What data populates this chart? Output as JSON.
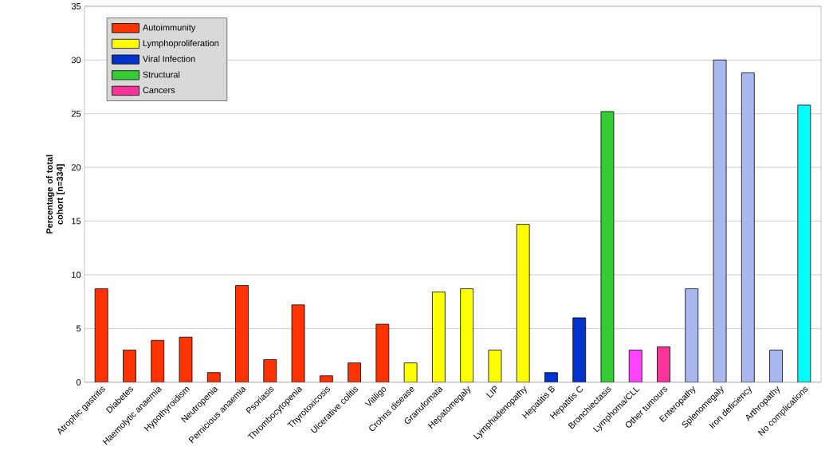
{
  "chart_data": {
    "type": "bar",
    "ylabel": "Percentage of total cohort [n=334]",
    "categories": [
      "Atrophic gastritis",
      "Diabetes",
      "Haemolytic anaemia",
      "Hypothyroidism",
      "Neutropenia",
      "Pernicious anaemia",
      "Psoriasis",
      "Thrombocytopenia",
      "Thyrotoxicosis",
      "Ulcerative colitis",
      "Vitiligo",
      "Crohns disease",
      "Granulomata",
      "Hepatomegaly",
      "LIP",
      "Lymphadenopathy",
      "Hepatitis B",
      "Hepatitis C",
      "Bronchiectasis",
      "Lymphoma/CLL",
      "Other tumours",
      "Enteropathy",
      "Splenomegaly",
      "Iron deficiency",
      "Arthropathy",
      "No complications"
    ],
    "series": [
      {
        "name": "Autoimmunity",
        "color": "#ff3300",
        "values": [
          8.7,
          3.0,
          3.9,
          4.2,
          0.9,
          9.0,
          2.1,
          7.2,
          0.6,
          1.8,
          5.4,
          null,
          null,
          null,
          null,
          null,
          null,
          null,
          null,
          null,
          null,
          null,
          null,
          null,
          null,
          null
        ]
      },
      {
        "name": "Lymphoproliferation",
        "color": "#ffff00",
        "values": [
          null,
          null,
          null,
          null,
          null,
          null,
          null,
          null,
          null,
          null,
          null,
          1.8,
          8.4,
          8.7,
          3.0,
          14.7,
          null,
          null,
          null,
          null,
          null,
          null,
          null,
          null,
          null,
          null
        ]
      },
      {
        "name": "Viral Infection",
        "color": "#0033cc",
        "values": [
          null,
          null,
          null,
          null,
          null,
          null,
          null,
          null,
          null,
          null,
          null,
          null,
          null,
          null,
          null,
          null,
          0.9,
          6.0,
          null,
          null,
          null,
          null,
          null,
          null,
          null,
          null
        ]
      },
      {
        "name": "Structural",
        "color": "#33cc33",
        "values": [
          null,
          null,
          null,
          null,
          null,
          null,
          null,
          null,
          null,
          null,
          null,
          null,
          null,
          null,
          null,
          null,
          null,
          null,
          25.2,
          null,
          null,
          null,
          null,
          null,
          null,
          null
        ]
      },
      {
        "name": "Cancers",
        "color": "#ff3399",
        "colors": [
          null,
          null,
          null,
          null,
          null,
          null,
          null,
          null,
          null,
          null,
          null,
          null,
          null,
          null,
          null,
          null,
          null,
          null,
          null,
          "#ff44ff",
          "#ff3399",
          null,
          null,
          null,
          null,
          null
        ],
        "values": [
          null,
          null,
          null,
          null,
          null,
          null,
          null,
          null,
          null,
          null,
          null,
          null,
          null,
          null,
          null,
          null,
          null,
          null,
          null,
          3.0,
          3.3,
          null,
          null,
          null,
          null,
          null
        ]
      },
      {
        "color": "#aab8f0",
        "values": [
          null,
          null,
          null,
          null,
          null,
          null,
          null,
          null,
          null,
          null,
          null,
          null,
          null,
          null,
          null,
          null,
          null,
          null,
          null,
          null,
          null,
          8.7,
          30.0,
          28.8,
          3.0,
          null
        ]
      },
      {
        "color": "#00ffff",
        "values": [
          null,
          null,
          null,
          null,
          null,
          null,
          null,
          null,
          null,
          null,
          null,
          null,
          null,
          null,
          null,
          null,
          null,
          null,
          null,
          null,
          null,
          null,
          null,
          null,
          null,
          25.8
        ]
      }
    ],
    "ylim": [
      0,
      35
    ],
    "yticks": [
      0,
      5,
      10,
      15,
      20,
      25,
      30,
      35
    ],
    "grid": "y",
    "legend": "top left"
  }
}
